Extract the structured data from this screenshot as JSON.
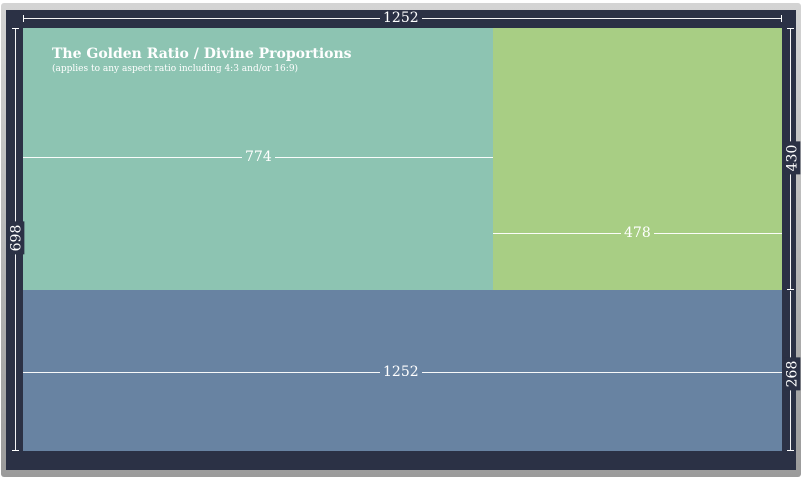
{
  "diagram": {
    "title": "The Golden Ratio / Divine Proportions",
    "subtitle": "(applies to any aspect ratio including 4:3 and/or 16:9)",
    "dimensions": {
      "total_width": "1252",
      "total_height": "698",
      "large_rect_width": "774",
      "small_rect_width": "478",
      "top_height": "430",
      "bottom_height": "268",
      "bottom_width": "1252"
    },
    "colors": {
      "frame": "#2b3145",
      "large_rect": "#8dc4b2",
      "small_rect": "#a8ce84",
      "bottom_rect": "#6883a2",
      "lines": "#ffffff"
    }
  }
}
